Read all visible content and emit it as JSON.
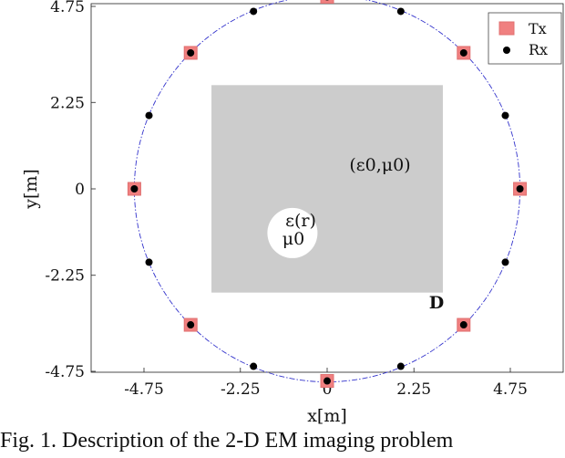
{
  "chart_data": {
    "type": "scatter",
    "xlabel": "x[m]",
    "ylabel": "y[m]",
    "xlim": [
      -5.25,
      5.25
    ],
    "ylim": [
      -5.0,
      5.0
    ],
    "xticks": [
      -4.75,
      -2.25,
      0,
      2.25,
      4.75
    ],
    "xtick_labels": [
      "-4.75",
      "-2.25",
      "0",
      "2.25",
      "4.75"
    ],
    "yticks": [
      -4.75,
      -2.25,
      0,
      2.25,
      4.75
    ],
    "ytick_labels": [
      "-4.75",
      "-2.25",
      "0",
      "2.25",
      "4.75"
    ],
    "grid": false,
    "legend_position": "top-right",
    "circle_radius": 5.0,
    "domain_square": {
      "x": [
        -3.0,
        3.0
      ],
      "y": [
        -2.7,
        2.7
      ]
    },
    "scatterer": {
      "center": [
        -0.9,
        -1.15
      ],
      "radius": 0.65
    },
    "series": [
      {
        "name": "Tx",
        "marker": "square",
        "color": "#f08080",
        "points": [
          [
            5.0,
            0.0
          ],
          [
            3.54,
            3.54
          ],
          [
            0.0,
            5.0
          ],
          [
            -3.54,
            3.54
          ],
          [
            -5.0,
            0.0
          ],
          [
            -3.54,
            -3.54
          ],
          [
            0.0,
            -5.0
          ],
          [
            3.54,
            -3.54
          ]
        ]
      },
      {
        "name": "Rx",
        "marker": "dot",
        "color": "#000000",
        "points": [
          [
            5.0,
            0.0
          ],
          [
            4.62,
            1.91
          ],
          [
            3.54,
            3.54
          ],
          [
            1.91,
            4.62
          ],
          [
            0.0,
            5.0
          ],
          [
            -1.91,
            4.62
          ],
          [
            -3.54,
            3.54
          ],
          [
            -4.62,
            1.91
          ],
          [
            -5.0,
            0.0
          ],
          [
            -4.62,
            -1.91
          ],
          [
            -3.54,
            -3.54
          ],
          [
            -1.91,
            -4.62
          ],
          [
            0.0,
            -5.0
          ],
          [
            1.91,
            -4.62
          ],
          [
            3.54,
            -3.54
          ],
          [
            4.62,
            -1.91
          ]
        ]
      }
    ],
    "annotations": {
      "background": "(ε0,μ0)",
      "scatterer_eps": "ε(r)",
      "scatterer_mu": "μ0",
      "domain": "D"
    }
  },
  "caption": "Fig. 1.  Description of the 2-D EM imaging problem"
}
